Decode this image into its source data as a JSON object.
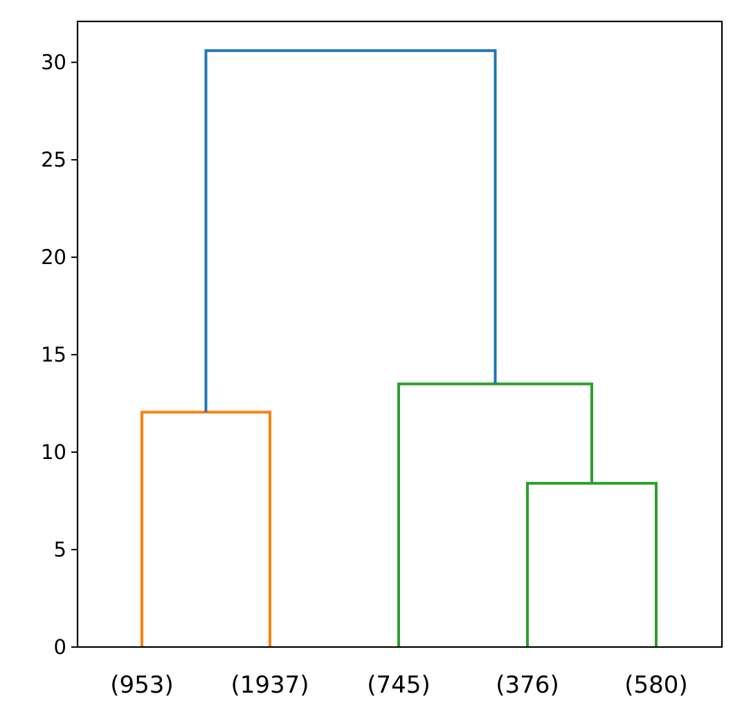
{
  "chart_data": {
    "type": "dendrogram",
    "title": "",
    "xlabel": "",
    "ylabel": "",
    "ylim": [
      0,
      32.1
    ],
    "yticks": [
      0,
      5,
      10,
      15,
      20,
      25,
      30
    ],
    "grid": false,
    "legend": "none",
    "leaves": [
      "(953)",
      "(1937)",
      "(745)",
      "(376)",
      "(580)"
    ],
    "links": [
      {
        "id": "link-953-1937",
        "left": 0,
        "right": 1,
        "height": 12.05,
        "color": "#ff7f0e"
      },
      {
        "id": "link-376-580",
        "left": 3,
        "right": 4,
        "height": 8.4,
        "color": "#2ca02c"
      },
      {
        "id": "link-745-cluster",
        "left": 2,
        "right": "link-376-580",
        "height": 13.5,
        "color": "#2ca02c"
      },
      {
        "id": "link-root",
        "left": "link-953-1937",
        "right": "link-745-cluster",
        "height": 30.6,
        "color": "#1f77b4"
      }
    ]
  }
}
